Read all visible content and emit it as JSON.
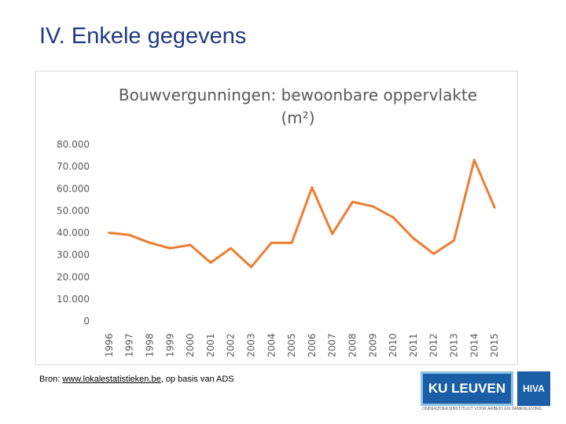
{
  "slide": {
    "title": "IV. Enkele gegevens"
  },
  "source": {
    "prefix": "Bron: ",
    "link_text": "www.lokalestatistieken.be",
    "suffix": ", op basis van ADS"
  },
  "logos": {
    "kul": "KU LEUVEN",
    "hiva": "HIVA",
    "subtitle": "ONDERZOEKSINSTITUUT VOOR ARBEID EN SAMENLEVING"
  },
  "colors": {
    "line": "#ed7d31",
    "title": "#1f3a86",
    "axis_text": "#595959",
    "grid": "#d9d9d9"
  },
  "chart_data": {
    "type": "line",
    "title": "Bouwvergunningen: bewoonbare oppervlakte (m²)",
    "title_lines": [
      "Bouwvergunningen: bewoonbare oppervlakte",
      "(m²)"
    ],
    "categories": [
      "1996",
      "1997",
      "1998",
      "1999",
      "2000",
      "2001",
      "2002",
      "2003",
      "2004",
      "2005",
      "2006",
      "2007",
      "2008",
      "2009",
      "2010",
      "2011",
      "2012",
      "2013",
      "2014",
      "2015"
    ],
    "series": [
      {
        "values": [
          40000,
          39000,
          35500,
          33000,
          34500,
          26500,
          33000,
          24500,
          35500,
          35500,
          60500,
          39500,
          54000,
          52000,
          47000,
          37500,
          30500,
          36500,
          73000,
          51500
        ]
      }
    ],
    "ylim": [
      0,
      80000
    ],
    "yticks": [
      0,
      10000,
      20000,
      30000,
      40000,
      50000,
      60000,
      70000,
      80000
    ],
    "ytick_labels": [
      "0",
      "10.000",
      "20.000",
      "30.000",
      "40.000",
      "50.000",
      "60.000",
      "70.000",
      "80.000"
    ],
    "grid": false,
    "legend": "none",
    "xlabel": "",
    "ylabel": ""
  }
}
